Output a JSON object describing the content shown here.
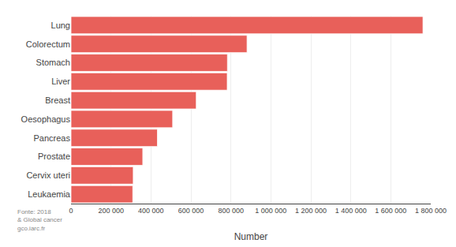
{
  "chart_data": {
    "type": "bar",
    "orientation": "horizontal",
    "categories": [
      "Lung",
      "Colorectum",
      "Stomach",
      "Liver",
      "Breast",
      "Oesophagus",
      "Pancreas",
      "Prostate",
      "Cervix uteri",
      "Leukaemia"
    ],
    "values": [
      1761007,
      880792,
      782685,
      781631,
      626679,
      508585,
      432242,
      358989,
      311365,
      309006
    ],
    "color": "#e8605a",
    "xlabel": "Number",
    "xlim": [
      0,
      1800000
    ],
    "xticks": [
      0,
      {
        "value": 200000,
        "label": "200 000"
      },
      {
        "value": 400000,
        "label": "400 000"
      },
      {
        "value": 600000,
        "label": "600 000"
      },
      {
        "value": 800000,
        "label": "800 000"
      },
      {
        "value": 1000000,
        "label": "1 000 000"
      },
      {
        "value": 1200000,
        "label": "1 200 000"
      },
      {
        "value": 1400000,
        "label": "1 400 000"
      },
      {
        "value": 1600000,
        "label": "1 600 000"
      },
      {
        "value": 1800000,
        "label": "1 800 000"
      }
    ],
    "grid": true,
    "annotations": [
      "Fonte: 2018",
      "& Global cancer",
      "gco.iarc.fr"
    ]
  }
}
